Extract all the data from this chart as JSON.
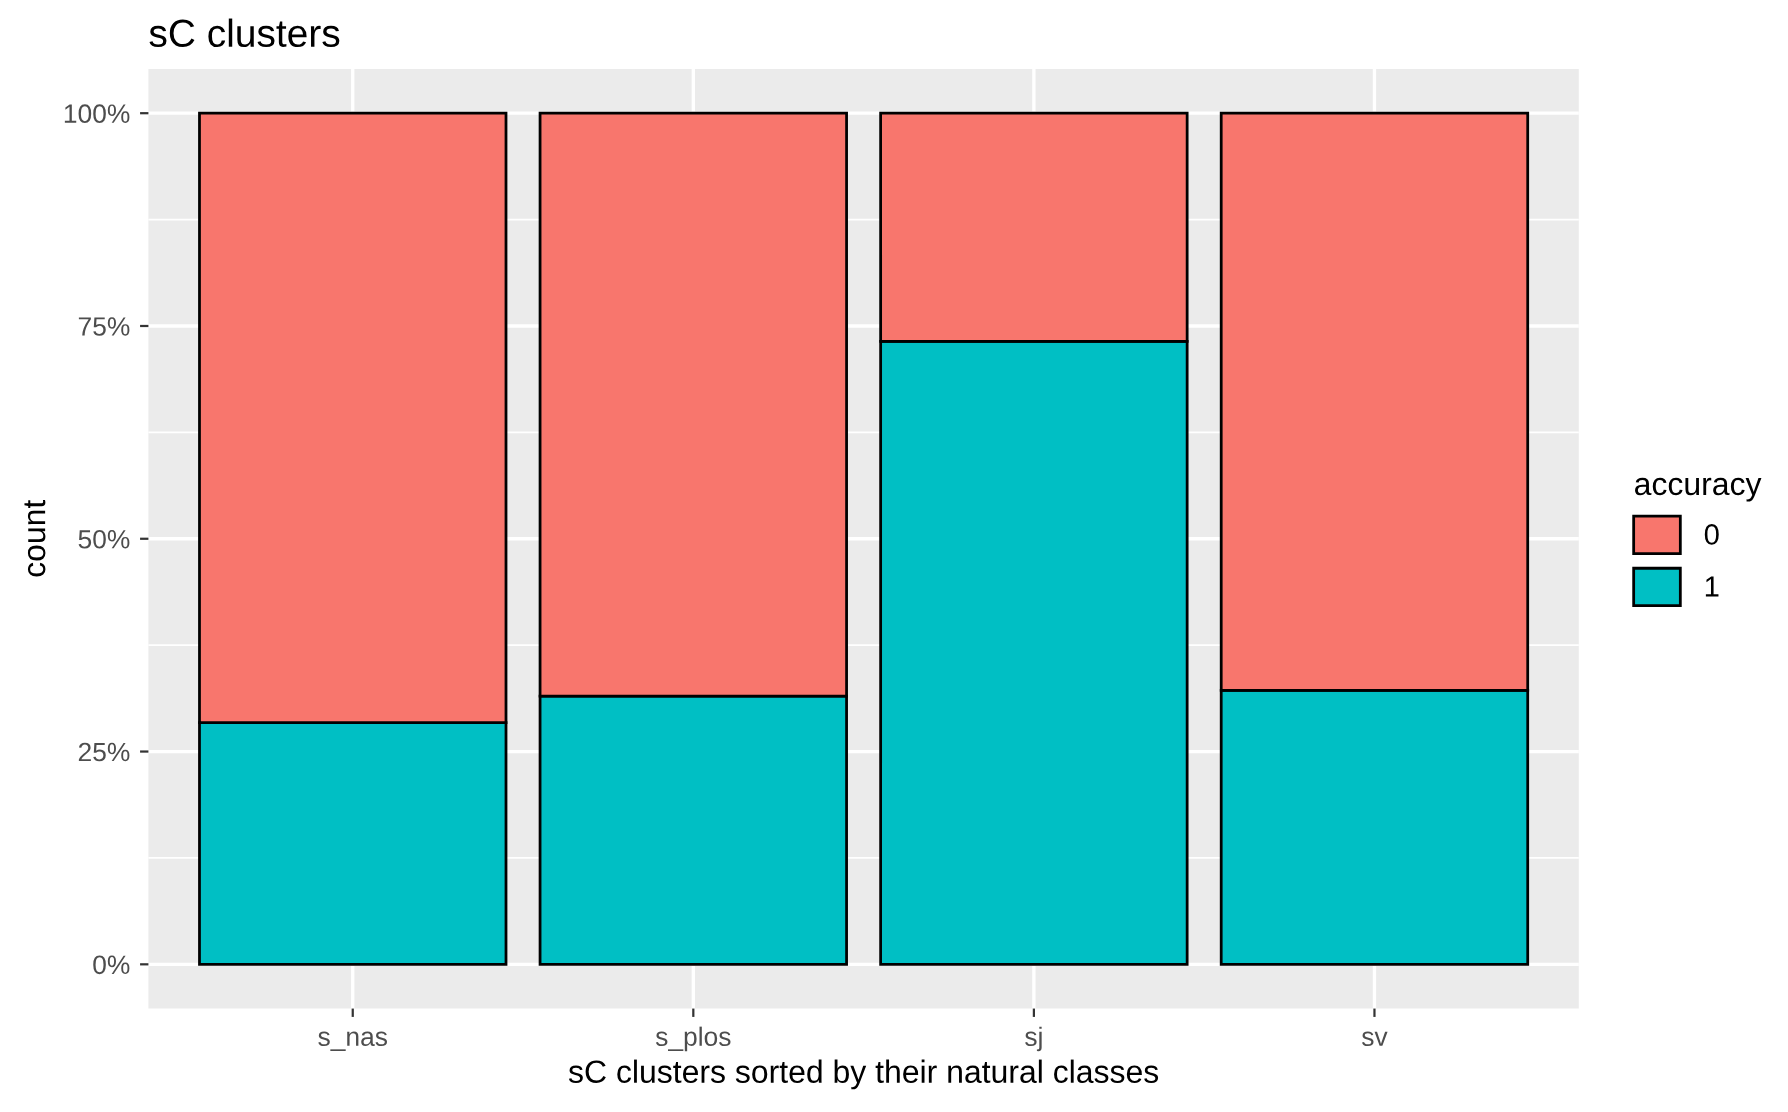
{
  "chart_data": {
    "type": "bar",
    "title": "sC clusters",
    "xlabel": "sC clusters sorted by their natural classes",
    "ylabel": "count",
    "legend_title": "accuracy",
    "categories": [
      "s_nas",
      "s_plos",
      "sj",
      "sv"
    ],
    "stacked": true,
    "series": [
      {
        "name": "1",
        "color": "#00bfc4",
        "values": [
          28.4,
          31.5,
          73.2,
          32.2
        ]
      },
      {
        "name": "0",
        "color": "#f8766d",
        "values": [
          71.6,
          68.5,
          26.8,
          67.8
        ]
      }
    ],
    "ylim": [
      -5.2,
      105.2
    ],
    "yticks": [
      {
        "value": 0,
        "label": "0%"
      },
      {
        "value": 25,
        "label": "25%"
      },
      {
        "value": 50,
        "label": "50%"
      },
      {
        "value": 75,
        "label": "75%"
      },
      {
        "value": 100,
        "label": "100%"
      }
    ],
    "grid": true,
    "legend": "right"
  }
}
